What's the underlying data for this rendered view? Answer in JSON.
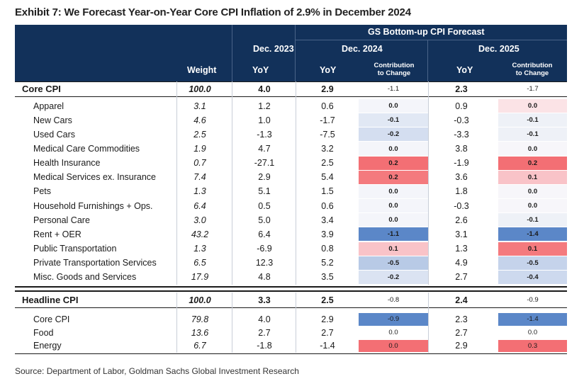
{
  "title": "Exhibit 7: We Forecast Year-on-Year Core CPI Inflation of 2.9% in December 2024",
  "header": {
    "gs_forecast": "GS Bottom-up CPI Forecast",
    "dec2023": "Dec. 2023",
    "dec2024": "Dec. 2024",
    "dec2025": "Dec. 2025",
    "weight": "Weight",
    "yoy": "YoY",
    "contrib": "Contribution\nto Change"
  },
  "sections": [
    {
      "total": {
        "label": "Core CPI",
        "weight": "100.0",
        "y23": "4.0",
        "y24": "2.9",
        "c24": "-1.1",
        "y25": "2.3",
        "c25": "-1.7"
      },
      "rows": [
        {
          "label": "Apparel",
          "weight": "3.1",
          "y23": "1.2",
          "y24": "0.6",
          "c24": "0.0",
          "y25": "0.9",
          "c25": "0.0",
          "bg24": "#f4f5fa",
          "bg25": "#fbe3e6"
        },
        {
          "label": "New Cars",
          "weight": "4.6",
          "y23": "1.0",
          "y24": "-1.7",
          "c24": "-0.1",
          "y25": "-0.3",
          "c25": "-0.1",
          "bg24": "#e1e8f4",
          "bg25": "#eef1f7"
        },
        {
          "label": "Used Cars",
          "weight": "2.5",
          "y23": "-1.3",
          "y24": "-7.5",
          "c24": "-0.2",
          "y25": "-3.3",
          "c25": "-0.1",
          "bg24": "#d4def0",
          "bg25": "#eef1f7"
        },
        {
          "label": "Medical Care Commodities",
          "weight": "1.9",
          "y23": "4.7",
          "y24": "3.2",
          "c24": "0.0",
          "y25": "3.8",
          "c25": "0.0",
          "bg24": "#f4f5fa",
          "bg25": "#f7f6fa"
        },
        {
          "label": "Health Insurance",
          "weight": "0.7",
          "y23": "-27.1",
          "y24": "2.5",
          "c24": "0.2",
          "y25": "-1.9",
          "c25": "0.2",
          "bg24": "#f36f74",
          "bg25": "#f36f74"
        },
        {
          "label": "Medical Services ex. Insurance",
          "weight": "7.4",
          "y23": "2.9",
          "y24": "5.4",
          "c24": "0.2",
          "y25": "3.6",
          "c25": "0.1",
          "bg24": "#f47a7e",
          "bg25": "#f9c3c8"
        },
        {
          "label": "Pets",
          "weight": "1.3",
          "y23": "5.1",
          "y24": "1.5",
          "c24": "0.0",
          "y25": "1.8",
          "c25": "0.0",
          "bg24": "#f4f5fa",
          "bg25": "#f7f6fa"
        },
        {
          "label": "Household Furnishings + Ops.",
          "weight": "6.4",
          "y23": "0.5",
          "y24": "0.6",
          "c24": "0.0",
          "y25": "-0.3",
          "c25": "0.0",
          "bg24": "#f4f5fa",
          "bg25": "#f7f6fa"
        },
        {
          "label": "Personal Care",
          "weight": "3.0",
          "y23": "5.0",
          "y24": "3.4",
          "c24": "0.0",
          "y25": "2.6",
          "c25": "-0.1",
          "bg24": "#f4f5fa",
          "bg25": "#eef1f7"
        },
        {
          "label": "Rent + OER",
          "weight": "43.2",
          "y23": "6.4",
          "y24": "3.9",
          "c24": "-1.1",
          "y25": "3.1",
          "c25": "-1.4",
          "bg24": "#5b87c8",
          "bg25": "#5b87c8"
        },
        {
          "label": "Public Transportation",
          "weight": "1.3",
          "y23": "-6.9",
          "y24": "0.8",
          "c24": "0.1",
          "y25": "1.3",
          "c25": "0.1",
          "bg24": "#f9c3c8",
          "bg25": "#f47a7e"
        },
        {
          "label": "Private Transportation Services",
          "weight": "6.5",
          "y23": "12.3",
          "y24": "5.2",
          "c24": "-0.5",
          "y25": "4.9",
          "c25": "-0.5",
          "bg24": "#b8cae6",
          "bg25": "#c5d3eb"
        },
        {
          "label": "Misc. Goods and Services",
          "weight": "17.9",
          "y23": "4.8",
          "y24": "3.5",
          "c24": "-0.2",
          "y25": "2.7",
          "c25": "-0.4",
          "bg24": "#dbe3f2",
          "bg25": "#cdd9ee"
        }
      ]
    },
    {
      "total": {
        "label": "Headline CPI",
        "weight": "100.0",
        "y23": "3.3",
        "y24": "2.5",
        "c24": "-0.8",
        "y25": "2.4",
        "c25": "-0.9"
      },
      "rows": [
        {
          "label": "Core CPI",
          "weight": "79.8",
          "y23": "4.0",
          "y24": "2.9",
          "c24": "-0.9",
          "y25": "2.3",
          "c25": "-1.4",
          "bg24": "#5b87c8",
          "bg25": "#5b87c8"
        },
        {
          "label": "Food",
          "weight": "13.6",
          "y23": "2.7",
          "y24": "2.7",
          "c24": "0.0",
          "y25": "2.7",
          "c25": "0.0",
          "bg24": "#ffffff",
          "bg25": "#ffffff"
        },
        {
          "label": "Energy",
          "weight": "6.7",
          "y23": "-1.8",
          "y24": "-1.4",
          "c24": "0.0",
          "y25": "2.9",
          "c25": "0.3",
          "bg24": "#f36f74",
          "bg25": "#f36f74"
        }
      ]
    }
  ],
  "source": "Source: Department of Labor, Goldman Sachs Global Investment Research"
}
